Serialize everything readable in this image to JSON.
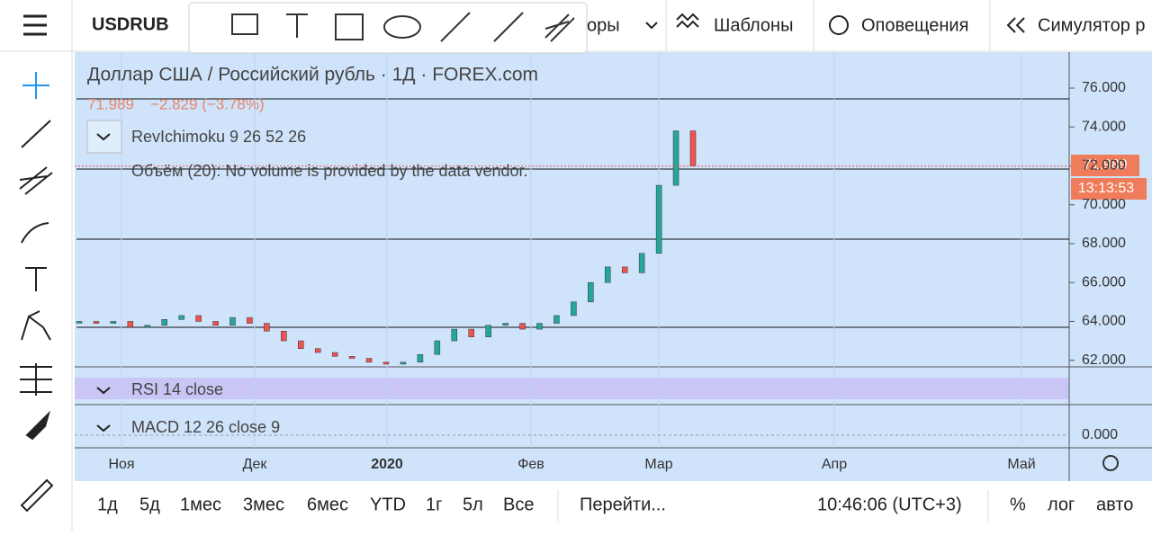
{
  "toolbar": {
    "symbol": "USDRUB",
    "items": [
      "оры",
      "Шаблоны",
      "Оповещения",
      "Симулятор р"
    ]
  },
  "chart": {
    "title": "Доллар США / Российский рубль · 1Д · FOREX.com",
    "quote": "71.989",
    "change": "−2.829 (−3.78%)",
    "indicators": [
      "RevIchimoku 9 26 52 26",
      "Объём (20): No volume is provided by the data vendor.",
      "RSI 14 close",
      "MACD 12 26 close 9"
    ],
    "ylim": [
      61.8,
      77.85
    ],
    "yticks": [
      {
        "value": 62,
        "label": "62.000"
      },
      {
        "value": 64,
        "label": "64.000"
      },
      {
        "value": 66,
        "label": "66.000"
      },
      {
        "value": 68,
        "label": "68.000"
      },
      {
        "value": 70,
        "label": "70.000"
      },
      {
        "value": 72,
        "label": "72.000"
      },
      {
        "value": 74,
        "label": "74.000"
      },
      {
        "value": 76,
        "label": "76.000"
      }
    ],
    "price_label": {
      "value": 71.989,
      "label": "71.989"
    },
    "countdown": "13:13:53",
    "macd_tick": {
      "value": 0,
      "label": "0.000"
    },
    "time_labels": [
      "Ноя",
      "Дек",
      "2020",
      "Фев",
      "Мар",
      "Апр",
      "Май"
    ],
    "price": {
      "values": [
        64.0,
        63.9,
        64.0,
        63.7,
        63.8,
        64.1,
        64.3,
        64.0,
        63.8,
        64.2,
        63.9,
        63.5,
        63.0,
        62.6,
        62.4,
        62.2,
        62.1,
        61.9,
        61.8,
        61.9,
        62.3,
        63.0,
        63.6,
        63.2,
        63.8,
        63.9,
        63.6,
        63.9,
        64.3,
        65.0,
        66.0,
        66.8,
        66.5,
        67.5,
        71.0,
        73.8,
        71.99
      ]
    }
  },
  "bottom": {
    "ranges": [
      "1д",
      "5д",
      "1мес",
      "3мес",
      "6мес",
      "YTD",
      "1г",
      "5л",
      "Все"
    ],
    "goto": "Перейти...",
    "clock": "10:46:06 (UTC+3)",
    "options": [
      "%",
      "лог",
      "авто"
    ]
  }
}
